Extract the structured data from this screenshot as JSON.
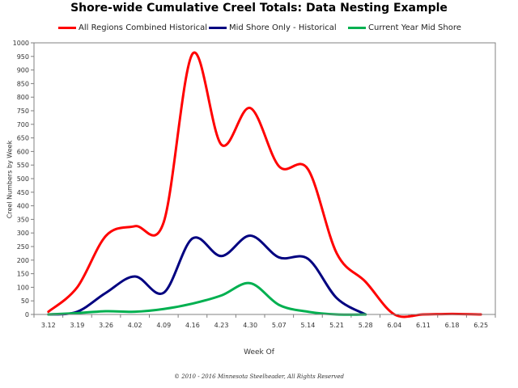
{
  "chart_data": {
    "type": "line",
    "title": "Shore-wide Cumulative Creel Totals: Data Nesting Example",
    "xlabel": "Week Of",
    "ylabel": "Creel Numbers by Week",
    "categories": [
      "3.12",
      "3.19",
      "3.26",
      "4.02",
      "4.09",
      "4.16",
      "4.23",
      "4.30",
      "5.07",
      "5.14",
      "5.21",
      "5.28",
      "6.04",
      "6.11",
      "6.18",
      "6.25"
    ],
    "ylim": [
      0,
      1000
    ],
    "yticks": [
      0,
      50,
      100,
      150,
      200,
      250,
      300,
      350,
      400,
      450,
      500,
      550,
      600,
      650,
      700,
      750,
      800,
      850,
      900,
      950,
      1000
    ],
    "grid": false,
    "legend": "top",
    "series": [
      {
        "name": "All Regions Combined Historical",
        "color": "#ff0000",
        "x": [
          "3.12",
          "3.19",
          "3.26",
          "4.02",
          "4.09",
          "4.16",
          "4.23",
          "4.30",
          "5.07",
          "5.14",
          "5.21",
          "5.28",
          "6.04",
          "6.11",
          "6.18",
          "6.25"
        ],
        "values": [
          10,
          100,
          290,
          325,
          340,
          960,
          625,
          760,
          545,
          535,
          225,
          120,
          0,
          0,
          2,
          0
        ]
      },
      {
        "name": "Mid Shore Only - Historical",
        "color": "#000080",
        "x": [
          "3.12",
          "3.19",
          "3.26",
          "4.02",
          "4.09",
          "4.16",
          "4.23",
          "4.30",
          "5.07",
          "5.14",
          "5.21",
          "5.28"
        ],
        "values": [
          0,
          10,
          80,
          140,
          80,
          280,
          215,
          290,
          210,
          205,
          60,
          0
        ]
      },
      {
        "name": "Current Year Mid Shore",
        "color": "#00b050",
        "x": [
          "3.12",
          "3.19",
          "3.26",
          "4.02",
          "4.09",
          "4.16",
          "4.23",
          "4.30",
          "5.07",
          "5.14",
          "5.21",
          "5.28"
        ],
        "values": [
          0,
          5,
          12,
          10,
          20,
          40,
          70,
          115,
          35,
          10,
          0,
          0
        ]
      }
    ]
  },
  "copyright": "© 2010 - 2016 Minnesota Steelheader, All Rights Reserved"
}
